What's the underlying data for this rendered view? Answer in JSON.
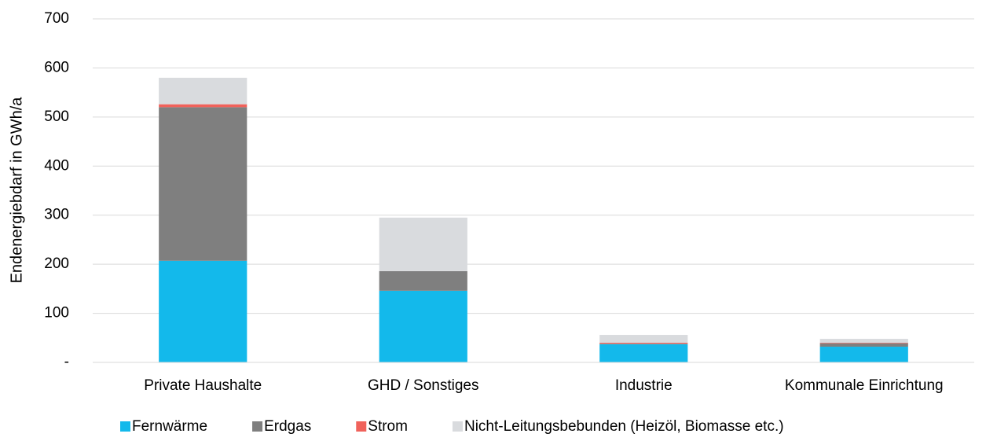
{
  "chart_data": {
    "type": "stacked_bar",
    "y_label": "Endenergiebdarf in GWh/a",
    "categories": [
      "Private Haushalte",
      "GHD / Sonstiges",
      "Industrie",
      "Kommunale Einrichtung"
    ],
    "series": [
      {
        "name": "Fernwärme",
        "color": "#13b9eb",
        "values": [
          207,
          146,
          37,
          32
        ]
      },
      {
        "name": "Erdgas",
        "color": "#7f7f7f",
        "values": [
          313,
          40,
          1,
          7
        ]
      },
      {
        "name": "Strom",
        "color": "#f0625b",
        "values": [
          6,
          0,
          2,
          1
        ]
      },
      {
        "name": "Nicht-Leitungsbebunden (Heizöl, Biomasse etc.)",
        "color": "#d9dbde",
        "values": [
          54,
          109,
          16,
          8
        ]
      }
    ],
    "ylim": [
      0,
      700
    ],
    "yticks": [
      {
        "value": 0,
        "label": "-"
      },
      100,
      200,
      300,
      400,
      500,
      600,
      700
    ],
    "grid": true,
    "legend": "bottom"
  }
}
